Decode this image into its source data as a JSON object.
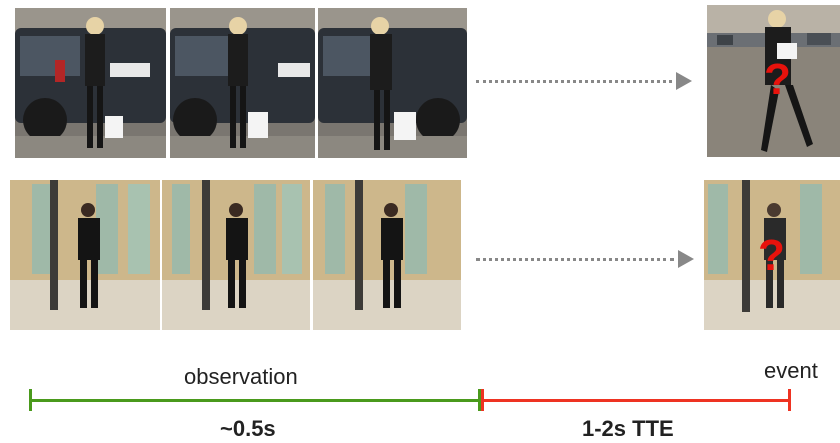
{
  "timeline": {
    "observation_label": "observation",
    "event_label": "event",
    "observation_duration": "~0.5s",
    "tte_duration": "1-2s TTE",
    "observation_color": "#4a9a1c",
    "tte_color": "#ee3322"
  },
  "rows": [
    {
      "name": "pedestrian-crossing-row",
      "frames": 3,
      "unknown_marker": "?"
    },
    {
      "name": "pedestrian-standing-row",
      "frames": 3,
      "unknown_marker": "?"
    }
  ]
}
